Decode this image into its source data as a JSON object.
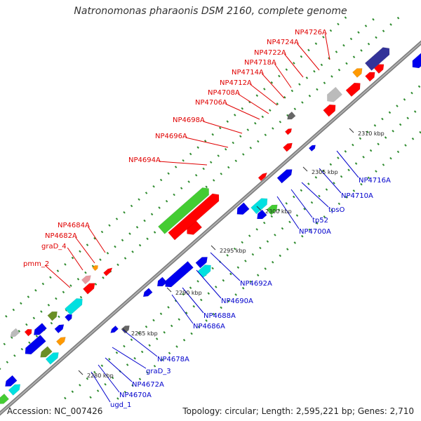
{
  "title": "Natronomonas pharaonis DSM 2160, complete genome",
  "footer": {
    "accession": "Accession: NC_007426",
    "summary": "Topology: circular; Length: 2,595,221 bp; Genes: 2,710"
  },
  "ticks": [
    "2280 kbp",
    "2285 kbp",
    "2290 kbp",
    "2295 kbp",
    "2300 kbp",
    "2305 kbp",
    "2310 kbp"
  ],
  "labels_upper": [
    "NP4726A",
    "NP4724A",
    "NP4722A",
    "NP4718A",
    "NP4714A",
    "NP4712A",
    "NP4708A",
    "NP4706A",
    "NP4698A",
    "NP4696A",
    "NP4694A",
    "NP4684A",
    "NP4682A",
    "graD_4",
    "pmm_2"
  ],
  "labels_lower": [
    "NP4716A",
    "NP4710A",
    "tpsO",
    "tp52",
    "NP4700A",
    "NP4692A",
    "NP4690A",
    "NP4688A",
    "NP4686A",
    "NP4678A",
    "graD_3",
    "NP4672A",
    "NP4670A",
    "ugd_1"
  ],
  "colors": {
    "red": "#ff0000",
    "green": "#44cc33",
    "blue": "#0000ee",
    "cyan": "#00e0e0",
    "navy": "#333399",
    "olive": "#6a8f25",
    "orange": "#ff9900",
    "gray": "#bbbbbb",
    "darkgray": "#666666",
    "pink": "#e89aa0",
    "backbone": "#888888"
  }
}
